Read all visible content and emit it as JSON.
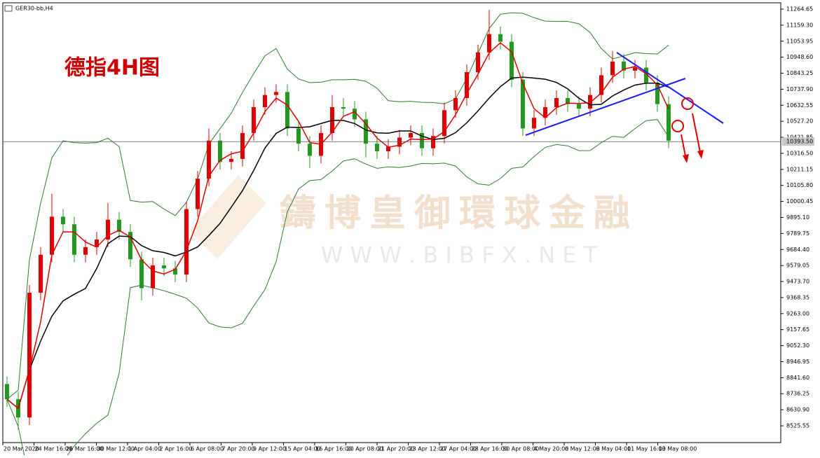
{
  "chart_data": {
    "type": "candlestick",
    "symbol": "GER30-bb,H4",
    "title": "德指4H图",
    "watermark": "鑄博皇御環球金融",
    "watermark_url": "W W W . B I B F X . N E T",
    "categories": [
      "20 Mar 2020",
      "24 Mar 16:00",
      "26 Mar 16:00",
      "30 Mar 12:00",
      "1 Apr 04:00",
      "2 Apr 16:00",
      "6 Apr 08:00",
      "7 Apr 20:00",
      "9 Apr 12:00",
      "15 Apr 04:00",
      "16 Apr 16:00",
      "20 Apr 08:00",
      "21 Apr 20:00",
      "23 Apr 12:00",
      "27 Apr 04:00",
      "28 Apr 16:00",
      "30 Apr 08:00",
      "4 May 20:00",
      "6 May 12:00",
      "8 May 04:00",
      "11 May 16:00",
      "13 May 08:00"
    ],
    "open": [
      8800,
      8700,
      8580,
      9400,
      9650,
      9900,
      9850,
      9650,
      9700,
      9750,
      9880,
      9800,
      9620,
      9430,
      9580,
      9560,
      9520,
      9950,
      10150,
      10400,
      10260,
      10280,
      10450,
      10620,
      10700,
      10720,
      10480,
      10380,
      10300,
      10450,
      10620,
      10610,
      10540,
      10380,
      10330,
      10360,
      10420,
      10450,
      10350,
      10430,
      10600,
      10680,
      10850,
      10980,
      11100,
      11050,
      10800,
      10480,
      10550,
      10620,
      10680,
      10640,
      10610,
      10700,
      10830,
      10920,
      10860,
      10880,
      10780,
      10640
    ],
    "high": [
      8850,
      8750,
      9450,
      9700,
      10050,
      9950,
      9900,
      9750,
      9800,
      9990,
      9930,
      9850,
      9670,
      9630,
      9630,
      9610,
      10000,
      10200,
      10480,
      10450,
      10330,
      10500,
      10670,
      10750,
      10770,
      10770,
      10530,
      10430,
      10500,
      10700,
      10680,
      10660,
      10590,
      10430,
      10410,
      10470,
      10500,
      10500,
      10480,
      10650,
      10730,
      10900,
      11030,
      11260,
      11150,
      11100,
      10850,
      10600,
      10670,
      10730,
      10730,
      10690,
      10750,
      10880,
      10990,
      10970,
      10930,
      10930,
      10830,
      10690
    ],
    "low": [
      8650,
      8500,
      8530,
      9350,
      9600,
      9800,
      9600,
      9600,
      9650,
      9700,
      9750,
      9570,
      9350,
      9380,
      9510,
      9470,
      9470,
      9900,
      10100,
      10210,
      10210,
      10230,
      10400,
      10570,
      10650,
      10430,
      10330,
      10220,
      10250,
      10400,
      10560,
      10490,
      10290,
      10280,
      10280,
      10310,
      10370,
      10300,
      10300,
      10380,
      10550,
      10630,
      10800,
      10930,
      11000,
      10750,
      10430,
      10430,
      10500,
      10570,
      10590,
      10560,
      10560,
      10650,
      10780,
      10810,
      10810,
      10730,
      10590,
      10350
    ],
    "close": [
      8700,
      8580,
      9400,
      9650,
      9900,
      9850,
      9650,
      9700,
      9750,
      9880,
      9800,
      9620,
      9430,
      9580,
      9560,
      9520,
      9950,
      10150,
      10400,
      10260,
      10280,
      10450,
      10620,
      10700,
      10720,
      10480,
      10380,
      10300,
      10450,
      10620,
      10610,
      10540,
      10380,
      10330,
      10360,
      10420,
      10450,
      10350,
      10430,
      10600,
      10680,
      10850,
      10980,
      11100,
      11050,
      10800,
      10480,
      10550,
      10620,
      10680,
      10640,
      10610,
      10700,
      10830,
      10920,
      10860,
      10880,
      10780,
      10640,
      10400
    ],
    "up_color": "#e00000",
    "down_color": "#1f9a1f",
    "band_color": "#2e7d2e",
    "ma_color": "#000000",
    "fast_ma_color": "#e00000",
    "last_price": {
      "value": 10393.5,
      "label": "10393.50"
    },
    "ylim": [
      8415,
      11306
    ],
    "yticks": [
      {
        "value": 11264.65,
        "label": "11264.65"
      },
      {
        "value": 11159.3,
        "label": "11159.30"
      },
      {
        "value": 11053.95,
        "label": "11053.95"
      },
      {
        "value": 10948.6,
        "label": "10948.60"
      },
      {
        "value": 10843.25,
        "label": "10843.25"
      },
      {
        "value": 10737.9,
        "label": "10737.90"
      },
      {
        "value": 10632.55,
        "label": "10632.55"
      },
      {
        "value": 10527.2,
        "label": "10527.20"
      },
      {
        "value": 10421.85,
        "label": "10421.85"
      },
      {
        "value": 10316.5,
        "label": "10316.50"
      },
      {
        "value": 10211.15,
        "label": "10211.15"
      },
      {
        "value": 10105.8,
        "label": "10105.80"
      },
      {
        "value": 10000.45,
        "label": "10000.45"
      },
      {
        "value": 9895.1,
        "label": "9895.10"
      },
      {
        "value": 9789.75,
        "label": "9789.75"
      },
      {
        "value": 9684.4,
        "label": "9684.40"
      },
      {
        "value": 9579.05,
        "label": "9579.05"
      },
      {
        "value": 9473.7,
        "label": "9473.70"
      },
      {
        "value": 9368.35,
        "label": "9368.35"
      },
      {
        "value": 9263,
        "label": "9263.00"
      },
      {
        "value": 9157.65,
        "label": "9157.65"
      },
      {
        "value": 9052.3,
        "label": "9052.30"
      },
      {
        "value": 8946.95,
        "label": "8946.95"
      },
      {
        "value": 8841.6,
        "label": "8841.60"
      },
      {
        "value": 8736.25,
        "label": "8736.25"
      },
      {
        "value": 8630.9,
        "label": "8630.90"
      },
      {
        "value": 8525.55,
        "label": "8525.55"
      }
    ]
  }
}
